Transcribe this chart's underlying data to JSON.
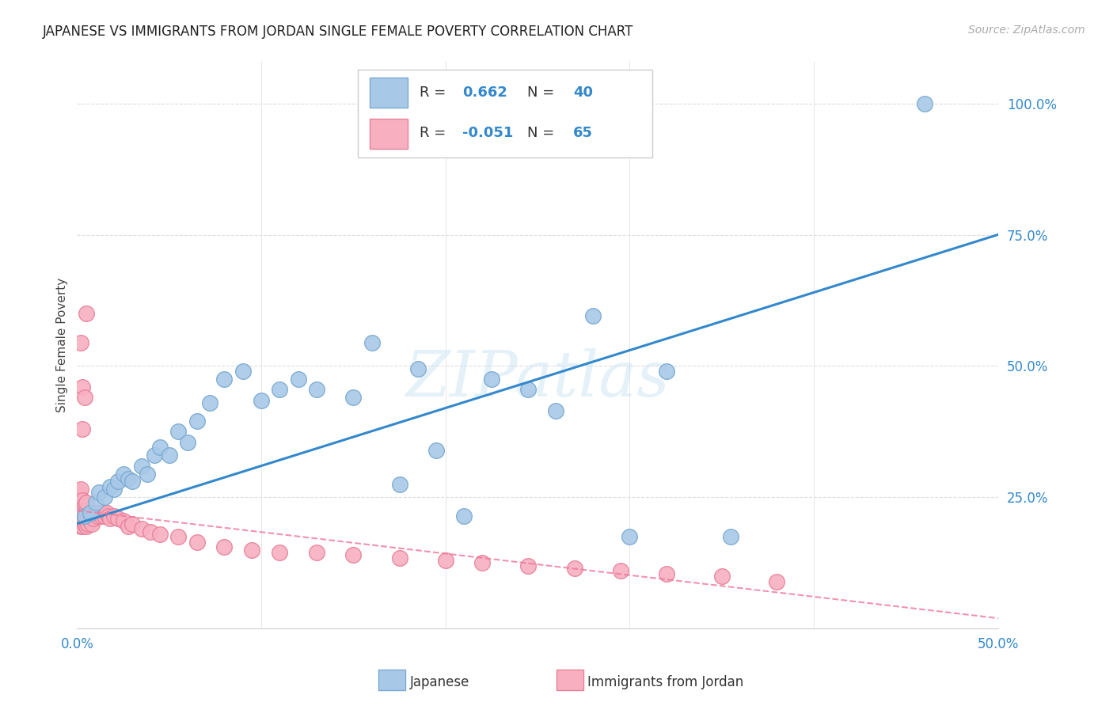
{
  "title": "JAPANESE VS IMMIGRANTS FROM JORDAN SINGLE FEMALE POVERTY CORRELATION CHART",
  "source": "Source: ZipAtlas.com",
  "ylabel": "Single Female Poverty",
  "xlim": [
    0.0,
    0.5
  ],
  "ylim": [
    0.0,
    1.08
  ],
  "xtick_labels": [
    "0.0%",
    "",
    "",
    "",
    "",
    "50.0%"
  ],
  "xtick_vals": [
    0.0,
    0.1,
    0.2,
    0.3,
    0.4,
    0.5
  ],
  "ytick_labels": [
    "25.0%",
    "50.0%",
    "75.0%",
    "100.0%"
  ],
  "ytick_vals": [
    0.25,
    0.5,
    0.75,
    1.0
  ],
  "background_color": "#ffffff",
  "grid_color": "#dddddd",
  "japanese_color": "#a8c8e8",
  "jordan_color": "#f8b0c0",
  "japanese_edge": "#7aaad0",
  "jordan_edge": "#e8809a",
  "japanese_R": 0.662,
  "japanese_N": 40,
  "jordan_R": -0.051,
  "jordan_N": 65,
  "japanese_line_color": "#3388cc",
  "jordan_line_color": "#ee7799",
  "watermark": "ZIPatlas",
  "japanese_x": [
    0.004,
    0.007,
    0.01,
    0.012,
    0.015,
    0.018,
    0.02,
    0.022,
    0.025,
    0.028,
    0.03,
    0.035,
    0.038,
    0.042,
    0.045,
    0.05,
    0.055,
    0.06,
    0.065,
    0.072,
    0.08,
    0.09,
    0.1,
    0.11,
    0.12,
    0.13,
    0.15,
    0.16,
    0.175,
    0.185,
    0.195,
    0.21,
    0.225,
    0.245,
    0.26,
    0.28,
    0.3,
    0.32,
    0.355,
    0.46
  ],
  "japanese_y": [
    0.215,
    0.22,
    0.24,
    0.26,
    0.25,
    0.27,
    0.265,
    0.28,
    0.295,
    0.285,
    0.28,
    0.31,
    0.295,
    0.33,
    0.345,
    0.33,
    0.375,
    0.355,
    0.395,
    0.43,
    0.475,
    0.49,
    0.435,
    0.455,
    0.475,
    0.455,
    0.44,
    0.545,
    0.275,
    0.495,
    0.34,
    0.215,
    0.475,
    0.455,
    0.415,
    0.595,
    0.175,
    0.49,
    0.175,
    1.0
  ],
  "jordan_x": [
    0.001,
    0.001,
    0.001,
    0.001,
    0.002,
    0.002,
    0.002,
    0.002,
    0.002,
    0.003,
    0.003,
    0.003,
    0.003,
    0.004,
    0.004,
    0.004,
    0.005,
    0.005,
    0.005,
    0.005,
    0.006,
    0.006,
    0.007,
    0.007,
    0.008,
    0.008,
    0.009,
    0.01,
    0.011,
    0.012,
    0.013,
    0.014,
    0.015,
    0.016,
    0.017,
    0.018,
    0.02,
    0.022,
    0.025,
    0.028,
    0.03,
    0.035,
    0.04,
    0.045,
    0.055,
    0.065,
    0.08,
    0.095,
    0.11,
    0.13,
    0.15,
    0.175,
    0.2,
    0.22,
    0.245,
    0.27,
    0.295,
    0.32,
    0.35,
    0.38,
    0.002,
    0.003,
    0.003,
    0.004,
    0.005
  ],
  "jordan_y": [
    0.2,
    0.215,
    0.225,
    0.26,
    0.195,
    0.205,
    0.22,
    0.245,
    0.265,
    0.195,
    0.21,
    0.225,
    0.245,
    0.2,
    0.215,
    0.235,
    0.195,
    0.21,
    0.225,
    0.24,
    0.2,
    0.215,
    0.205,
    0.22,
    0.2,
    0.215,
    0.21,
    0.22,
    0.215,
    0.22,
    0.215,
    0.22,
    0.215,
    0.22,
    0.215,
    0.21,
    0.215,
    0.21,
    0.205,
    0.195,
    0.2,
    0.19,
    0.185,
    0.18,
    0.175,
    0.165,
    0.155,
    0.15,
    0.145,
    0.145,
    0.14,
    0.135,
    0.13,
    0.125,
    0.12,
    0.115,
    0.11,
    0.105,
    0.1,
    0.09,
    0.545,
    0.46,
    0.38,
    0.44,
    0.6
  ]
}
